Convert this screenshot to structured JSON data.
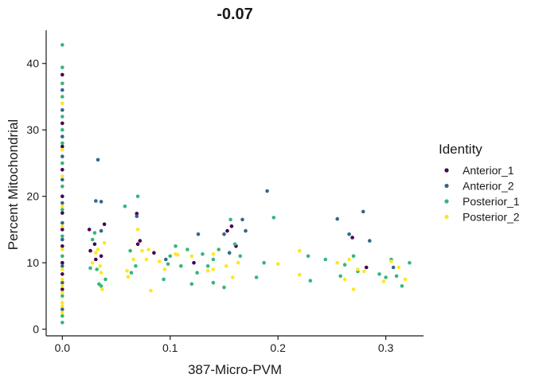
{
  "chart_data": {
    "type": "scatter",
    "title": "-0.07",
    "xlabel": "387-Micro-PVM",
    "ylabel": "Percent Mitochondrial",
    "xlim": [
      -0.015,
      0.335
    ],
    "ylim": [
      -1.0,
      45.0
    ],
    "xticks": [
      0.0,
      0.1,
      0.2,
      0.3
    ],
    "xtick_labels": [
      "0.0",
      "0.1",
      "0.2",
      "0.3"
    ],
    "yticks": [
      0,
      10,
      20,
      30,
      40
    ],
    "ytick_labels": [
      "0",
      "10",
      "20",
      "30",
      "40"
    ],
    "grid": false,
    "legend": {
      "title": "Identity",
      "position": "right",
      "entries": [
        {
          "name": "Anterior_1",
          "color": "#440154"
        },
        {
          "name": "Anterior_2",
          "color": "#31688E"
        },
        {
          "name": "Posterior_1",
          "color": "#35B779"
        },
        {
          "name": "Posterior_2",
          "color": "#FDE725"
        }
      ]
    },
    "series": [
      {
        "name": "Anterior_1",
        "color": "#440154",
        "points": [
          [
            0.0,
            38.3
          ],
          [
            0.0,
            31.0
          ],
          [
            0.0,
            27.5
          ],
          [
            0.0,
            24.0
          ],
          [
            0.0,
            20.0
          ],
          [
            0.0,
            17.5
          ],
          [
            0.0,
            15.0
          ],
          [
            0.0,
            12.5
          ],
          [
            0.0,
            10.0
          ],
          [
            0.0,
            8.3
          ],
          [
            0.0,
            6.0
          ],
          [
            0.025,
            15.0
          ],
          [
            0.026,
            11.8
          ],
          [
            0.03,
            12.8
          ],
          [
            0.031,
            10.5
          ],
          [
            0.036,
            11.0
          ],
          [
            0.039,
            15.8
          ],
          [
            0.069,
            17.4
          ],
          [
            0.07,
            12.8
          ],
          [
            0.072,
            13.3
          ],
          [
            0.085,
            11.5
          ],
          [
            0.122,
            10.0
          ],
          [
            0.153,
            14.8
          ],
          [
            0.157,
            15.5
          ],
          [
            0.161,
            12.5
          ],
          [
            0.269,
            13.8
          ],
          [
            0.282,
            9.3
          ]
        ]
      },
      {
        "name": "Anterior_2",
        "color": "#31688E",
        "points": [
          [
            0.0,
            36.0
          ],
          [
            0.0,
            33.0
          ],
          [
            0.0,
            29.0
          ],
          [
            0.0,
            26.0
          ],
          [
            0.0,
            22.5
          ],
          [
            0.0,
            19.0
          ],
          [
            0.0,
            16.0
          ],
          [
            0.0,
            13.5
          ],
          [
            0.0,
            9.5
          ],
          [
            0.0,
            7.0
          ],
          [
            0.0,
            3.0
          ],
          [
            0.031,
            19.3
          ],
          [
            0.033,
            25.5
          ],
          [
            0.036,
            19.2
          ],
          [
            0.036,
            14.8
          ],
          [
            0.069,
            17.0
          ],
          [
            0.096,
            10.5
          ],
          [
            0.126,
            14.3
          ],
          [
            0.15,
            14.3
          ],
          [
            0.155,
            11.5
          ],
          [
            0.167,
            16.5
          ],
          [
            0.17,
            14.8
          ],
          [
            0.19,
            20.8
          ],
          [
            0.255,
            16.6
          ],
          [
            0.266,
            14.3
          ],
          [
            0.279,
            17.7
          ],
          [
            0.285,
            13.3
          ],
          [
            0.307,
            9.3
          ]
        ]
      },
      {
        "name": "Posterior_1",
        "color": "#35B779",
        "points": [
          [
            0.0,
            42.8
          ],
          [
            0.0,
            39.4
          ],
          [
            0.0,
            37.0
          ],
          [
            0.0,
            35.0
          ],
          [
            0.0,
            32.0
          ],
          [
            0.0,
            30.0
          ],
          [
            0.0,
            28.0
          ],
          [
            0.0,
            25.0
          ],
          [
            0.0,
            21.5
          ],
          [
            0.0,
            18.0
          ],
          [
            0.0,
            14.0
          ],
          [
            0.0,
            11.0
          ],
          [
            0.0,
            5.0
          ],
          [
            0.0,
            2.0
          ],
          [
            0.0,
            1.0
          ],
          [
            0.026,
            9.2
          ],
          [
            0.028,
            13.5
          ],
          [
            0.03,
            14.5
          ],
          [
            0.032,
            9.0
          ],
          [
            0.034,
            6.8
          ],
          [
            0.036,
            6.5
          ],
          [
            0.04,
            7.5
          ],
          [
            0.058,
            18.5
          ],
          [
            0.063,
            11.8
          ],
          [
            0.064,
            8.5
          ],
          [
            0.068,
            9.5
          ],
          [
            0.07,
            20.0
          ],
          [
            0.094,
            7.5
          ],
          [
            0.098,
            9.8
          ],
          [
            0.1,
            11.0
          ],
          [
            0.105,
            12.5
          ],
          [
            0.11,
            9.5
          ],
          [
            0.116,
            12.0
          ],
          [
            0.12,
            6.8
          ],
          [
            0.125,
            8.5
          ],
          [
            0.13,
            11.3
          ],
          [
            0.135,
            9.5
          ],
          [
            0.14,
            7.0
          ],
          [
            0.14,
            10.5
          ],
          [
            0.145,
            12.0
          ],
          [
            0.15,
            6.3
          ],
          [
            0.156,
            16.5
          ],
          [
            0.16,
            12.8
          ],
          [
            0.165,
            11.0
          ],
          [
            0.18,
            7.8
          ],
          [
            0.187,
            10.0
          ],
          [
            0.196,
            16.8
          ],
          [
            0.228,
            11.0
          ],
          [
            0.23,
            7.3
          ],
          [
            0.244,
            10.5
          ],
          [
            0.258,
            8.0
          ],
          [
            0.262,
            9.7
          ],
          [
            0.27,
            11.0
          ],
          [
            0.274,
            8.7
          ],
          [
            0.294,
            8.3
          ],
          [
            0.3,
            7.8
          ],
          [
            0.305,
            10.5
          ],
          [
            0.31,
            8.0
          ],
          [
            0.315,
            6.5
          ],
          [
            0.322,
            10.0
          ]
        ]
      },
      {
        "name": "Posterior_2",
        "color": "#FDE725",
        "points": [
          [
            0.0,
            34.0
          ],
          [
            0.0,
            27.0
          ],
          [
            0.0,
            23.0
          ],
          [
            0.0,
            18.5
          ],
          [
            0.0,
            15.5
          ],
          [
            0.0,
            12.0
          ],
          [
            0.0,
            9.0
          ],
          [
            0.0,
            7.5
          ],
          [
            0.0,
            6.5
          ],
          [
            0.0,
            5.5
          ],
          [
            0.0,
            4.0
          ],
          [
            0.0,
            3.5
          ],
          [
            0.0,
            2.5
          ],
          [
            0.028,
            10.0
          ],
          [
            0.031,
            11.5
          ],
          [
            0.033,
            12.0
          ],
          [
            0.035,
            9.5
          ],
          [
            0.036,
            8.5
          ],
          [
            0.037,
            6.0
          ],
          [
            0.039,
            13.0
          ],
          [
            0.06,
            8.8
          ],
          [
            0.061,
            7.9
          ],
          [
            0.066,
            10.5
          ],
          [
            0.07,
            15.0
          ],
          [
            0.074,
            11.8
          ],
          [
            0.078,
            10.5
          ],
          [
            0.08,
            12.0
          ],
          [
            0.082,
            5.8
          ],
          [
            0.09,
            10.2
          ],
          [
            0.095,
            9.0
          ],
          [
            0.105,
            11.3
          ],
          [
            0.107,
            11.2
          ],
          [
            0.12,
            11.0
          ],
          [
            0.135,
            8.8
          ],
          [
            0.14,
            9.0
          ],
          [
            0.14,
            11.3
          ],
          [
            0.152,
            9.5
          ],
          [
            0.158,
            7.8
          ],
          [
            0.163,
            10.0
          ],
          [
            0.2,
            9.8
          ],
          [
            0.22,
            8.2
          ],
          [
            0.22,
            11.8
          ],
          [
            0.255,
            10.0
          ],
          [
            0.262,
            7.5
          ],
          [
            0.266,
            10.5
          ],
          [
            0.27,
            6.0
          ],
          [
            0.274,
            9.0
          ],
          [
            0.28,
            8.7
          ],
          [
            0.298,
            7.2
          ],
          [
            0.305,
            10.2
          ],
          [
            0.312,
            9.3
          ],
          [
            0.318,
            7.5
          ]
        ]
      }
    ]
  }
}
